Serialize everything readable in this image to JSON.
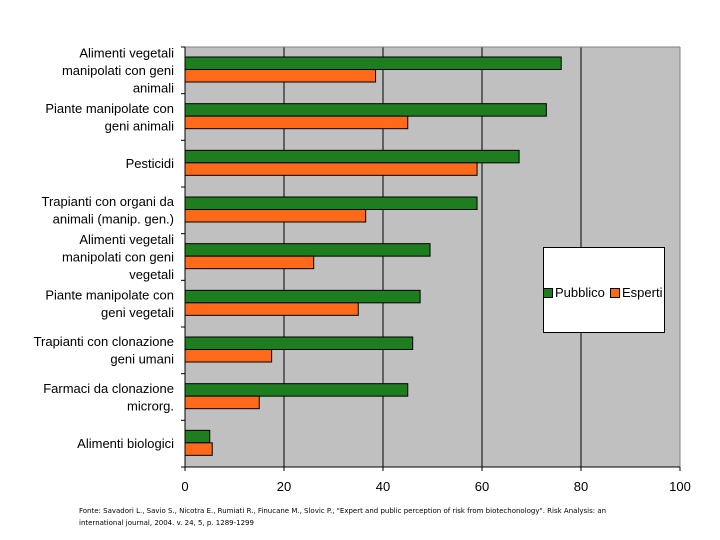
{
  "chart_data": {
    "type": "bar",
    "orientation": "horizontal",
    "categories": [
      "Alimenti vegetali manipolati con geni animali",
      "Piante manipolate con geni animali",
      "Pesticidi",
      "Trapianti con organi da animali (manip. gen.)",
      "Alimenti vegetali manipolati con geni vegetali",
      "Piante manipolate con geni vegetali",
      "Trapianti con clonazione geni umani",
      "Farmaci da clonazione microrg.",
      "Alimenti biologici"
    ],
    "category_lines": [
      [
        "Alimenti vegetali",
        "manipolati con geni",
        "animali"
      ],
      [
        "Piante manipolate con",
        "geni animali"
      ],
      [
        "Pesticidi"
      ],
      [
        "Trapianti con organi da",
        "animali (manip. gen.)"
      ],
      [
        "Alimenti vegetali",
        "manipolati con geni",
        "vegetali"
      ],
      [
        "Piante manipolate con",
        "geni vegetali"
      ],
      [
        "Trapianti con clonazione",
        "geni umani"
      ],
      [
        "Farmaci da clonazione",
        "microrg."
      ],
      [
        "Alimenti biologici"
      ]
    ],
    "series": [
      {
        "name": "Pubblico",
        "color": "#1e7d1e",
        "values": [
          76,
          73,
          67.5,
          59,
          49.5,
          47.5,
          46,
          45,
          5
        ]
      },
      {
        "name": "Esperti",
        "color": "#ff6a1a",
        "values": [
          38.5,
          45,
          59,
          36.5,
          26,
          35,
          17.5,
          15,
          5.5
        ]
      }
    ],
    "xlim": [
      0,
      100
    ],
    "xticks": [
      "0",
      "20",
      "40",
      "60",
      "80",
      "100"
    ],
    "grid": true,
    "plot_background": "#c0c0c0",
    "legend_position": "right"
  },
  "legend": {
    "pubblico_label": "Pubblico",
    "esperti_label": "Esperti",
    "pubblico_color": "#1e7d1e",
    "esperti_color": "#ff6a1a"
  },
  "source": {
    "line1": "Fonte: Savadori L., Savio S., Nicotra E., Rumiati R., Finucane M., Slovic P., \"Expert and public perception of risk from biotechonology\". Risk Analysis: an",
    "line2": "international journal, 2004. v. 24, 5, p. 1289-1299"
  }
}
